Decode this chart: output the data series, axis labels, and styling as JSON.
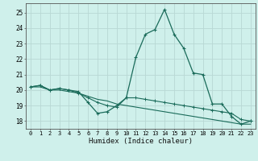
{
  "xlabel": "Humidex (Indice chaleur)",
  "bg_color": "#cff0eb",
  "grid_color": "#b8d8d4",
  "line_color": "#1a6b5a",
  "xlim": [
    -0.5,
    23.5
  ],
  "ylim": [
    17.5,
    25.6
  ],
  "yticks": [
    18,
    19,
    20,
    21,
    22,
    23,
    24,
    25
  ],
  "xticks": [
    0,
    1,
    2,
    3,
    4,
    5,
    6,
    7,
    8,
    9,
    10,
    11,
    12,
    13,
    14,
    15,
    16,
    17,
    18,
    19,
    20,
    21,
    22,
    23
  ],
  "series1_x": [
    0,
    1,
    2,
    3,
    4,
    5,
    6,
    7,
    8,
    9,
    10,
    11,
    12,
    13,
    14,
    15,
    16,
    17,
    18,
    19,
    20,
    21,
    22,
    23
  ],
  "series1_y": [
    20.2,
    20.3,
    20.0,
    20.1,
    20.0,
    19.9,
    19.2,
    18.5,
    18.6,
    19.0,
    19.5,
    22.1,
    23.6,
    23.9,
    25.2,
    23.6,
    22.7,
    21.1,
    21.0,
    19.1,
    19.1,
    18.3,
    17.8,
    18.0
  ],
  "series2_x": [
    0,
    1,
    2,
    3,
    4,
    5,
    6,
    7,
    8,
    9,
    10,
    11,
    12,
    13,
    14,
    15,
    16,
    17,
    18,
    19,
    20,
    21,
    22,
    23
  ],
  "series2_y": [
    20.2,
    20.3,
    20.0,
    20.1,
    20.0,
    19.8,
    19.5,
    19.2,
    19.0,
    18.9,
    19.5,
    19.5,
    19.4,
    19.3,
    19.2,
    19.1,
    19.0,
    18.9,
    18.8,
    18.7,
    18.6,
    18.5,
    18.1,
    18.0
  ],
  "series3_x": [
    0,
    1,
    2,
    3,
    4,
    5,
    6,
    7,
    8,
    9,
    10,
    11,
    12,
    13,
    14,
    15,
    16,
    17,
    18,
    19,
    20,
    21,
    22,
    23
  ],
  "series3_y": [
    20.2,
    20.2,
    20.0,
    20.0,
    19.9,
    19.8,
    19.6,
    19.4,
    19.3,
    19.1,
    19.0,
    18.9,
    18.8,
    18.7,
    18.6,
    18.5,
    18.4,
    18.3,
    18.2,
    18.1,
    18.0,
    17.9,
    17.8,
    17.8
  ],
  "xlabel_fontsize": 6.5,
  "tick_fontsize": 5.0
}
